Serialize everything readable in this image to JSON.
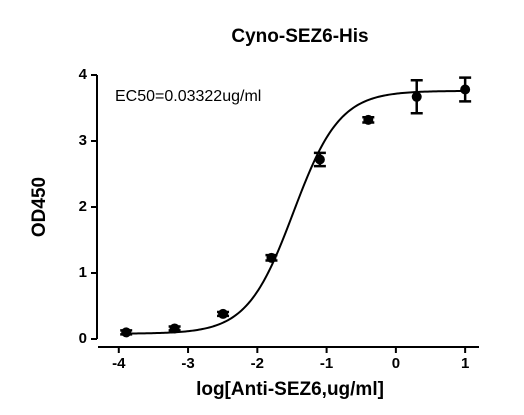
{
  "chart_data": {
    "type": "scatter",
    "title": "Cyno-SEZ6-His",
    "x_label": "log[Anti-SEZ6,ug/ml]",
    "y_label": "OD450",
    "annotation": "EC50=0.03322ug/ml",
    "x": [
      -3.893,
      -3.194,
      -2.495,
      -1.796,
      -1.097,
      -0.398,
      0.301,
      1.0
    ],
    "values": [
      0.1,
      0.16,
      0.38,
      1.23,
      2.72,
      3.32,
      3.67,
      3.78
    ],
    "errors": [
      0.03,
      0.03,
      0.03,
      0.04,
      0.1,
      0.04,
      0.25,
      0.18
    ],
    "color": "#000000",
    "fit": {
      "bottom": 0.08,
      "top": 3.76,
      "log_ec50": -1.479,
      "hill": 1.3
    },
    "xlim": [
      -4.3,
      1.2
    ],
    "xticks": [
      -4,
      -3,
      -2,
      -1,
      0,
      1
    ],
    "ylim": [
      0,
      4
    ],
    "yticks": [
      0,
      1,
      2,
      3,
      4
    ]
  }
}
